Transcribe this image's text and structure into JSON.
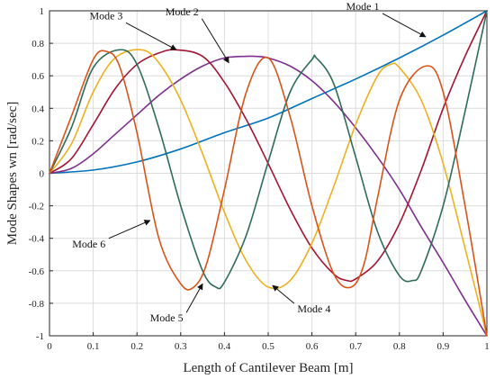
{
  "chart_data": {
    "type": "line",
    "xlabel": "Length of Cantilever Beam [m]",
    "ylabel": "Mode Shapes wn [rad/sec]",
    "xlim": [
      0,
      1
    ],
    "ylim": [
      -1,
      1
    ],
    "xticks": [
      0,
      0.1,
      0.2,
      0.3,
      0.4,
      0.5,
      0.6,
      0.7,
      0.8,
      0.9,
      1
    ],
    "xtick_labels": [
      "0",
      "0.1",
      "0.2",
      "0.3",
      "0.4",
      "0.5",
      "0.6",
      "0.7",
      "0.8",
      "0.9",
      "1"
    ],
    "yticks": [
      -1,
      -0.8,
      -0.6,
      -0.4,
      -0.2,
      0,
      0.2,
      0.4,
      0.6,
      0.8,
      1
    ],
    "ytick_labels": [
      "-1",
      "-0.8",
      "-0.6",
      "-0.4",
      "-0.2",
      "0",
      "0.2",
      "0.4",
      "0.6",
      "0.8",
      "1"
    ],
    "grid": true,
    "series": [
      {
        "name": "Mode 1",
        "color": "#0072BD",
        "x": [
          0,
          0.1,
          0.2,
          0.3,
          0.4,
          0.5,
          0.6,
          0.7,
          0.8,
          0.9,
          1
        ],
        "y": [
          0,
          0.02,
          0.07,
          0.15,
          0.25,
          0.34,
          0.46,
          0.58,
          0.71,
          0.85,
          1
        ]
      },
      {
        "name": "Mode 2",
        "color": "#7E2F8E",
        "x": [
          0,
          0.05,
          0.1,
          0.15,
          0.2,
          0.25,
          0.3,
          0.35,
          0.4,
          0.45,
          0.47,
          0.5,
          0.55,
          0.6,
          0.65,
          0.7,
          0.75,
          0.8,
          0.85,
          0.9,
          0.95,
          1
        ],
        "y": [
          0,
          0.03,
          0.12,
          0.24,
          0.36,
          0.48,
          0.58,
          0.66,
          0.71,
          0.72,
          0.72,
          0.71,
          0.66,
          0.57,
          0.44,
          0.28,
          0.1,
          -0.1,
          -0.33,
          -0.55,
          -0.78,
          -1
        ]
      },
      {
        "name": "Mode 3",
        "color": "#A2142F",
        "x": [
          0,
          0.05,
          0.1,
          0.15,
          0.2,
          0.25,
          0.29,
          0.35,
          0.4,
          0.45,
          0.5,
          0.55,
          0.6,
          0.65,
          0.68,
          0.7,
          0.75,
          0.8,
          0.85,
          0.9,
          0.95,
          1
        ],
        "y": [
          0,
          0.09,
          0.3,
          0.52,
          0.67,
          0.74,
          0.76,
          0.72,
          0.56,
          0.33,
          0.06,
          -0.22,
          -0.46,
          -0.62,
          -0.66,
          -0.65,
          -0.54,
          -0.31,
          0.02,
          0.4,
          0.72,
          1
        ]
      },
      {
        "name": "Mode 4",
        "color": "#EDB120",
        "x": [
          0,
          0.05,
          0.1,
          0.15,
          0.21,
          0.25,
          0.3,
          0.35,
          0.4,
          0.45,
          0.5,
          0.55,
          0.6,
          0.65,
          0.7,
          0.75,
          0.78,
          0.8,
          0.85,
          0.9,
          0.95,
          1
        ],
        "y": [
          0,
          0.18,
          0.5,
          0.71,
          0.76,
          0.68,
          0.45,
          0.12,
          -0.24,
          -0.54,
          -0.7,
          -0.66,
          -0.43,
          -0.08,
          0.3,
          0.6,
          0.67,
          0.65,
          0.45,
          0.06,
          -0.46,
          -1
        ]
      },
      {
        "name": "Mode 5",
        "color": "#2E6B5A",
        "x": [
          0,
          0.05,
          0.1,
          0.16,
          0.2,
          0.25,
          0.3,
          0.35,
          0.38,
          0.4,
          0.45,
          0.5,
          0.55,
          0.6,
          0.61,
          0.65,
          0.7,
          0.75,
          0.8,
          0.83,
          0.85,
          0.9,
          0.95,
          1
        ],
        "y": [
          0,
          0.28,
          0.65,
          0.76,
          0.67,
          0.28,
          -0.2,
          -0.6,
          -0.7,
          -0.67,
          -0.38,
          0.07,
          0.5,
          0.7,
          0.71,
          0.55,
          0.1,
          -0.36,
          -0.63,
          -0.66,
          -0.6,
          -0.2,
          0.38,
          1
        ]
      },
      {
        "name": "Mode 6",
        "color": "#D95319",
        "x": [
          0,
          0.05,
          0.1,
          0.13,
          0.16,
          0.2,
          0.25,
          0.3,
          0.33,
          0.36,
          0.4,
          0.45,
          0.5,
          0.55,
          0.6,
          0.65,
          0.69,
          0.72,
          0.75,
          0.8,
          0.86,
          0.9,
          0.95,
          1
        ],
        "y": [
          0,
          0.35,
          0.7,
          0.75,
          0.66,
          0.25,
          -0.4,
          -0.68,
          -0.7,
          -0.55,
          -0.1,
          0.5,
          0.71,
          0.35,
          -0.2,
          -0.62,
          -0.7,
          -0.55,
          -0.15,
          0.45,
          0.66,
          0.5,
          -0.2,
          -1
        ]
      }
    ],
    "annotations": [
      {
        "text": "Mode 1",
        "series": "Mode 1",
        "x": 0.86,
        "y": 0.84
      },
      {
        "text": "Mode 2",
        "series": "Mode 2",
        "x": 0.41,
        "y": 0.68
      },
      {
        "text": "Mode 3",
        "series": "Mode 3",
        "x": 0.29,
        "y": 0.76
      },
      {
        "text": "Mode 4",
        "series": "Mode 4",
        "x": 0.51,
        "y": -0.69
      },
      {
        "text": "Mode 5",
        "series": "Mode 5",
        "x": 0.35,
        "y": -0.68
      },
      {
        "text": "Mode 6",
        "series": "Mode 6",
        "x": 0.23,
        "y": -0.29
      }
    ]
  }
}
